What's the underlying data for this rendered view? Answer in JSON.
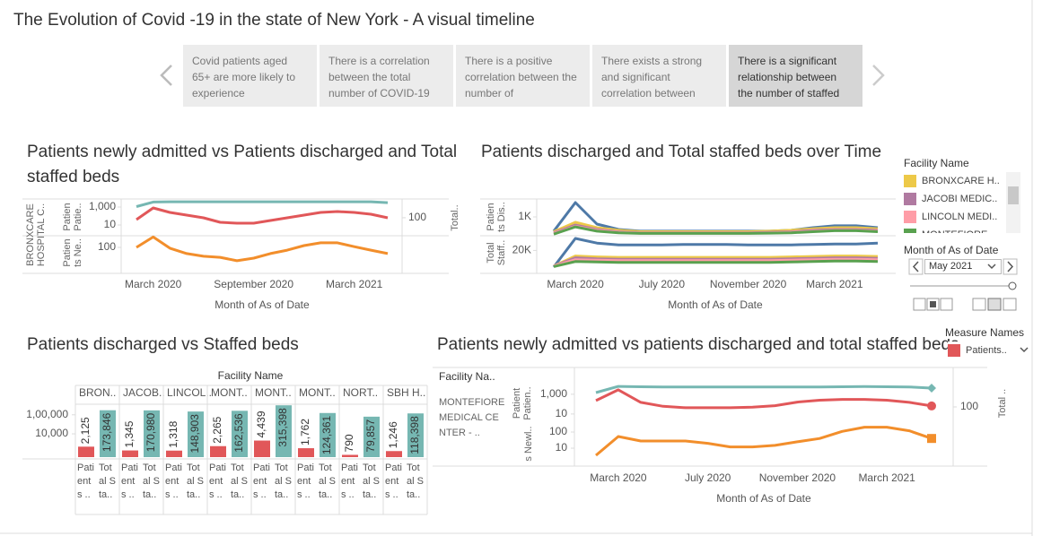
{
  "title": "The Evolution of Covid -19 in the state of New York - A visual timeline",
  "story_points": [
    "Covid patients aged 65+ are more likely to experience",
    "There is a correlation between the total number of COVID-19",
    "There is a positive correlation between the number of",
    "There exists a strong and significant correlation between",
    "There is a significant relationship between the number of staffed"
  ],
  "active_story_point": 4,
  "chart_data": [
    {
      "type": "line",
      "title": "Patients newly admitted vs Patients discharged and Total staffed beds",
      "row_label": "BRONXCARE HOSPITAL C..",
      "x": [
        "2020-02",
        "2020-03",
        "2020-04",
        "2020-05",
        "2020-06",
        "2020-07",
        "2020-08",
        "2020-09",
        "2020-10",
        "2020-11",
        "2020-12",
        "2021-01",
        "2021-02",
        "2021-03",
        "2021-04",
        "2021-05"
      ],
      "xticks": [
        {
          "value": "2020-03",
          "label": "March 2020"
        },
        {
          "value": "2020-09",
          "label": "September 2020"
        },
        {
          "value": "2021-03",
          "label": "March 2021"
        }
      ],
      "xlabel": "Month of As of Date",
      "panes": [
        {
          "ylabel": "Patien Patie..",
          "log": true,
          "ylim": [
            0.8,
            10000
          ],
          "yticks": [
            {
              "value": 1000,
              "label": "1,000"
            },
            10
          ],
          "y2label": "Total..",
          "y2lim": [
            11,
            1260
          ],
          "y2ticks": [
            100
          ],
          "series": [
            {
              "color": "#76b7b2",
              "axis": "y2",
              "values": [
                420,
                760,
                780,
                780,
                780,
                780,
                780,
                780,
                780,
                780,
                780,
                780,
                780,
                780,
                780,
                700
              ]
            },
            {
              "color": "#e15759",
              "values": [
                40,
                800,
                250,
                125,
                63,
                20,
                16,
                16,
                32,
                63,
                125,
                250,
                320,
                250,
                160,
                63
              ]
            }
          ]
        },
        {
          "ylabel": "Patien ts Ne..",
          "log": true,
          "ylim": [
            6.3,
            400
          ],
          "yticks": [
            100
          ],
          "series": [
            {
              "color": "#f28e2b",
              "values": [
                100,
                380,
                90,
                45,
                32,
                28,
                18,
                25,
                45,
                70,
                126,
                180,
                180,
                110,
                70,
                45
              ]
            }
          ]
        }
      ]
    },
    {
      "type": "line",
      "title": "Patients discharged and Total staffed beds over Time",
      "x": [
        "2020-02",
        "2020-03",
        "2020-04",
        "2020-05",
        "2020-06",
        "2020-07",
        "2020-08",
        "2020-09",
        "2020-10",
        "2020-11",
        "2020-12",
        "2021-01",
        "2021-02",
        "2021-03",
        "2021-04",
        "2021-05"
      ],
      "xticks": [
        {
          "value": "2020-03",
          "label": "March 2020"
        },
        {
          "value": "2020-07",
          "label": "July 2020"
        },
        {
          "value": "2020-11",
          "label": "November 2020"
        },
        {
          "value": "2021-03",
          "label": "March 2021"
        }
      ],
      "xlabel": "Month of As of Date",
      "panes": [
        {
          "ylabel": "Patien ts Dis..",
          "log": true,
          "ylim": [
            100,
            10000
          ],
          "yticks": [
            {
              "value": 1000,
              "label": "1K"
            }
          ],
          "series": [
            {
              "color": "#4e79a7",
              "values": [
                160,
                6300,
                400,
                200,
                160,
                160,
                160,
                160,
                160,
                160,
                160,
                180,
                250,
                320,
                320,
                250
              ]
            },
            {
              "color": "#edc948",
              "values": [
                150,
                500,
                250,
                180,
                150,
                150,
                150,
                150,
                150,
                150,
                160,
                180,
                220,
                250,
                250,
                220
              ]
            },
            {
              "color": "#b07aa1",
              "values": [
                130,
                350,
                200,
                150,
                130,
                130,
                130,
                130,
                130,
                130,
                140,
                150,
                180,
                200,
                200,
                180
              ]
            },
            {
              "color": "#ff9da7",
              "values": [
                120,
                300,
                180,
                140,
                125,
                125,
                125,
                125,
                125,
                125,
                130,
                140,
                160,
                180,
                180,
                160
              ]
            },
            {
              "color": "#59a14f",
              "values": [
                110,
                280,
                160,
                130,
                120,
                120,
                120,
                120,
                120,
                120,
                125,
                130,
                150,
                170,
                170,
                150
              ]
            }
          ]
        },
        {
          "ylabel": "Total Staff..",
          "log": false,
          "ylim": [
            0,
            34000
          ],
          "yticks": [
            {
              "value": 20000,
              "label": "20K"
            }
          ],
          "series": [
            {
              "color": "#4e79a7",
              "values": [
                2000,
                33000,
                28000,
                26000,
                26000,
                26000,
                26500,
                26500,
                26500,
                26000,
                26000,
                26000,
                26500,
                27000,
                27000,
                28000
              ]
            },
            {
              "color": "#edc948",
              "values": [
                3000,
                14000,
                13000,
                12500,
                12500,
                12500,
                12500,
                12500,
                12500,
                12500,
                12500,
                13000,
                13500,
                14000,
                14000,
                13500
              ]
            },
            {
              "color": "#b07aa1",
              "values": [
                3000,
                12000,
                11000,
                10500,
                10500,
                10500,
                10500,
                10500,
                10500,
                10500,
                10500,
                11000,
                11500,
                12000,
                12000,
                11500
              ]
            },
            {
              "color": "#ff9da7",
              "values": [
                3000,
                10000,
                9500,
                9000,
                9000,
                9000,
                9000,
                9000,
                9000,
                9000,
                9000,
                9500,
                10000,
                10500,
                10500,
                10000
              ]
            },
            {
              "color": "#59a14f",
              "values": [
                2500,
                8000,
                7500,
                7000,
                7000,
                7000,
                7000,
                7000,
                7000,
                7000,
                7000,
                7500,
                8000,
                8500,
                8500,
                8000
              ]
            }
          ]
        }
      ]
    },
    {
      "type": "bar",
      "title": "Patients discharged vs Staffed beds",
      "facet_title": "Facility Name",
      "categories": [
        "BRON..",
        "JACOB..",
        "LINCOL..",
        "MONT..",
        "MONT..",
        "MONT..",
        "NORT..",
        "SBH H.."
      ],
      "log": true,
      "ylim": [
        600,
        400000
      ],
      "yticks": [
        {
          "value": 100000,
          "label": "1,00,000"
        },
        {
          "value": 10000,
          "label": "10,000"
        }
      ],
      "series": [
        {
          "name": "Patients ..",
          "color": "#e15759",
          "values": [
            2125,
            1345,
            1318,
            2265,
            4439,
            1762,
            790,
            1246
          ],
          "value_labels": [
            "2,125",
            "1,345",
            "1,318",
            "2,265",
            "4,439",
            "1,762",
            "790",
            "1,246"
          ]
        },
        {
          "name": "Total Sta..",
          "color": "#76b7b2",
          "values": [
            173846,
            170980,
            148903,
            162536,
            315398,
            124361,
            79857,
            118398
          ],
          "value_labels": [
            "173,846",
            "170,980",
            "148,903",
            "162,536",
            "315,398",
            "124,361",
            "79,857",
            "118,398"
          ]
        }
      ]
    },
    {
      "type": "line",
      "title": "Patients newly admitted vs patients discharged and total staffed beds",
      "facet_title": "Facility Na..",
      "row_label": "MONTEFIORE MEDICAL CENTER - ..",
      "x": [
        "2020-02",
        "2020-03",
        "2020-04",
        "2020-05",
        "2020-06",
        "2020-07",
        "2020-08",
        "2020-09",
        "2020-10",
        "2020-11",
        "2020-12",
        "2021-01",
        "2021-02",
        "2021-03",
        "2021-04",
        "2021-05"
      ],
      "xticks": [
        {
          "value": "2020-03",
          "label": "March 2020"
        },
        {
          "value": "2020-07",
          "label": "July 2020"
        },
        {
          "value": "2020-11",
          "label": "November 2020"
        },
        {
          "value": "2021-03",
          "label": "March 2021"
        }
      ],
      "xlabel": "Month of As of Date",
      "panes": [
        {
          "ylabel": "Patient Patien..",
          "log": true,
          "ylim": [
            1.2,
            12000
          ],
          "yticks": [
            {
              "value": 1000,
              "label": "1,000"
            },
            10
          ],
          "y2label": "Total ..",
          "y2lim": [
            2.3,
            23000
          ],
          "y2ticks": [
            100
          ],
          "series": [
            {
              "color": "#76b7b2",
              "axis": "y2",
              "marker": "diamond",
              "values": [
                2850,
                12000,
                11000,
                10500,
                10500,
                10500,
                10500,
                10500,
                10500,
                10500,
                10500,
                11000,
                11500,
                11000,
                10500,
                8000
              ]
            },
            {
              "color": "#e15759",
              "marker": "circle",
              "values": [
                230,
                2850,
                150,
                60,
                43,
                43,
                43,
                50,
                70,
                160,
                250,
                300,
                300,
                250,
                150,
                65
              ]
            }
          ]
        },
        {
          "ylabel": "s Newl..",
          "log": true,
          "ylim": [
            2.8,
            245
          ],
          "yticks": [
            100,
            10
          ],
          "series": [
            {
              "color": "#f28e2b",
              "marker": "square",
              "values": [
                3.6,
                53,
                28,
                28,
                28,
                20,
                12,
                12,
                15,
                25,
                40,
                110,
                200,
                200,
                120,
                40
              ]
            }
          ]
        }
      ]
    }
  ],
  "filters": {
    "facility": {
      "title": "Facility Name",
      "items": [
        {
          "name": "BRONXCARE H..",
          "color": "#edc948"
        },
        {
          "name": "JACOBI MEDIC..",
          "color": "#b07aa1"
        },
        {
          "name": "LINCOLN MEDI..",
          "color": "#ff9da7"
        },
        {
          "name": "MONTEFIORE..",
          "color": "#59a14f"
        }
      ]
    },
    "month": {
      "title": "Month of As of Date",
      "selected": "May 2021"
    }
  },
  "measure_legend": {
    "title": "Measure Names",
    "items": [
      {
        "name": "Patients..",
        "color": "#e15759"
      }
    ]
  }
}
